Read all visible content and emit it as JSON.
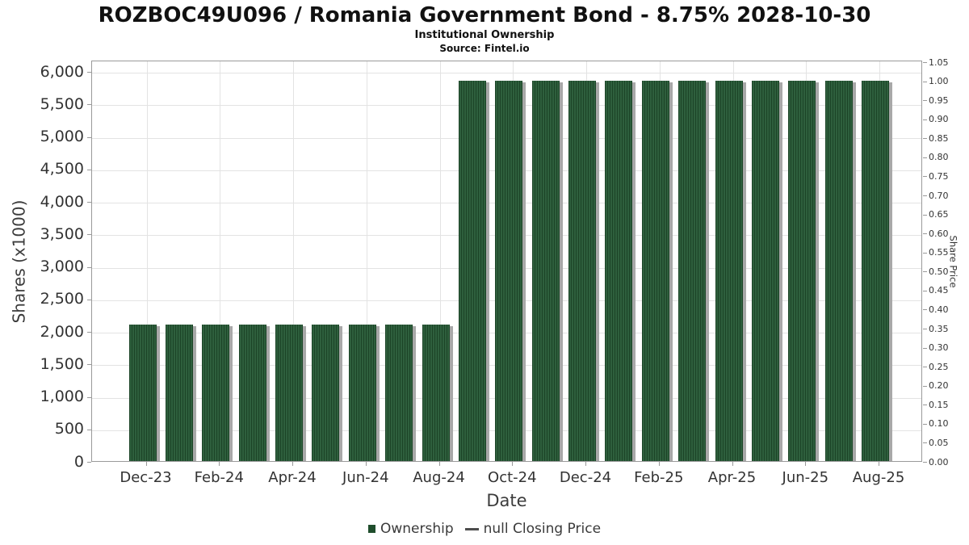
{
  "page": {
    "title": "ROZBOC49U096 / Romania Government Bond - 8.75% 2028-10-30",
    "subtitle": "Institutional Ownership",
    "source": "Source: Fintel.io"
  },
  "colors": {
    "bar_stripe_light": "#2e5f3d",
    "bar_stripe_dark": "#1c4427",
    "bar_shadow": "#a8a8a8",
    "grid": "#e3e3e3",
    "axis_border": "#9a9a9a",
    "tick_mark": "#999999",
    "text": "#333333",
    "legend_square": "#1f4d2c",
    "legend_dash": "#4d4d4d"
  },
  "legend": {
    "items": [
      {
        "label": "Ownership",
        "marker": "square",
        "color": "#1f4d2c"
      },
      {
        "label": "null Closing Price",
        "marker": "dash",
        "color": "#4d4d4d"
      }
    ]
  },
  "chart_data": {
    "type": "bar",
    "title": "ROZBOC49U096 / Romania Government Bond - 8.75% 2028-10-30",
    "subtitle": "Institutional Ownership",
    "source": "Source: Fintel.io",
    "xlabel": "Date",
    "ylabel_left": "Shares (x1000)",
    "ylabel_right": "Share Price",
    "categories": [
      "Dec-23",
      "Jan-24",
      "Feb-24",
      "Mar-24",
      "Apr-24",
      "May-24",
      "Jun-24",
      "Jul-24",
      "Aug-24",
      "Sep-24",
      "Oct-24",
      "Nov-24",
      "Dec-24",
      "Jan-25",
      "Feb-25",
      "Mar-25",
      "Apr-25",
      "May-25",
      "Jun-25",
      "Jul-25",
      "Aug-25"
    ],
    "series": [
      {
        "name": "Ownership",
        "unit": "shares x1000",
        "values": [
          2100,
          2100,
          2100,
          2100,
          2100,
          2100,
          2100,
          2100,
          2100,
          5850,
          5850,
          5850,
          5850,
          5850,
          5850,
          5850,
          5850,
          5850,
          5850,
          5850,
          5850
        ]
      },
      {
        "name": "null Closing Price",
        "values": []
      }
    ],
    "x_tick_labels": [
      "Dec-23",
      "Feb-24",
      "Apr-24",
      "Jun-24",
      "Aug-24",
      "Oct-24",
      "Dec-24",
      "Feb-25",
      "Apr-25",
      "Jun-25",
      "Aug-25"
    ],
    "y_left_tick_values": [
      0,
      500,
      1000,
      1500,
      2000,
      2500,
      3000,
      3500,
      4000,
      4500,
      5000,
      5500,
      6000
    ],
    "y_left_tick_labels": [
      "0",
      "500",
      "1,000",
      "1,500",
      "2,000",
      "2,500",
      "3,000",
      "3,500",
      "4,000",
      "4,500",
      "5,000",
      "5,500",
      "6,000"
    ],
    "y_right_tick_labels": [
      "0.00",
      "0.05",
      "0.10",
      "0.15",
      "0.20",
      "0.25",
      "0.30",
      "0.35",
      "0.40",
      "0.45",
      "0.50",
      "0.55",
      "0.60",
      "0.65",
      "0.70",
      "0.75",
      "0.80",
      "0.85",
      "0.90",
      "0.95",
      "1.00",
      "1.05"
    ],
    "ylim_left": [
      0,
      6000
    ],
    "ylim_right": [
      0,
      1.05
    ],
    "grid": true,
    "legend_position": "bottom"
  }
}
